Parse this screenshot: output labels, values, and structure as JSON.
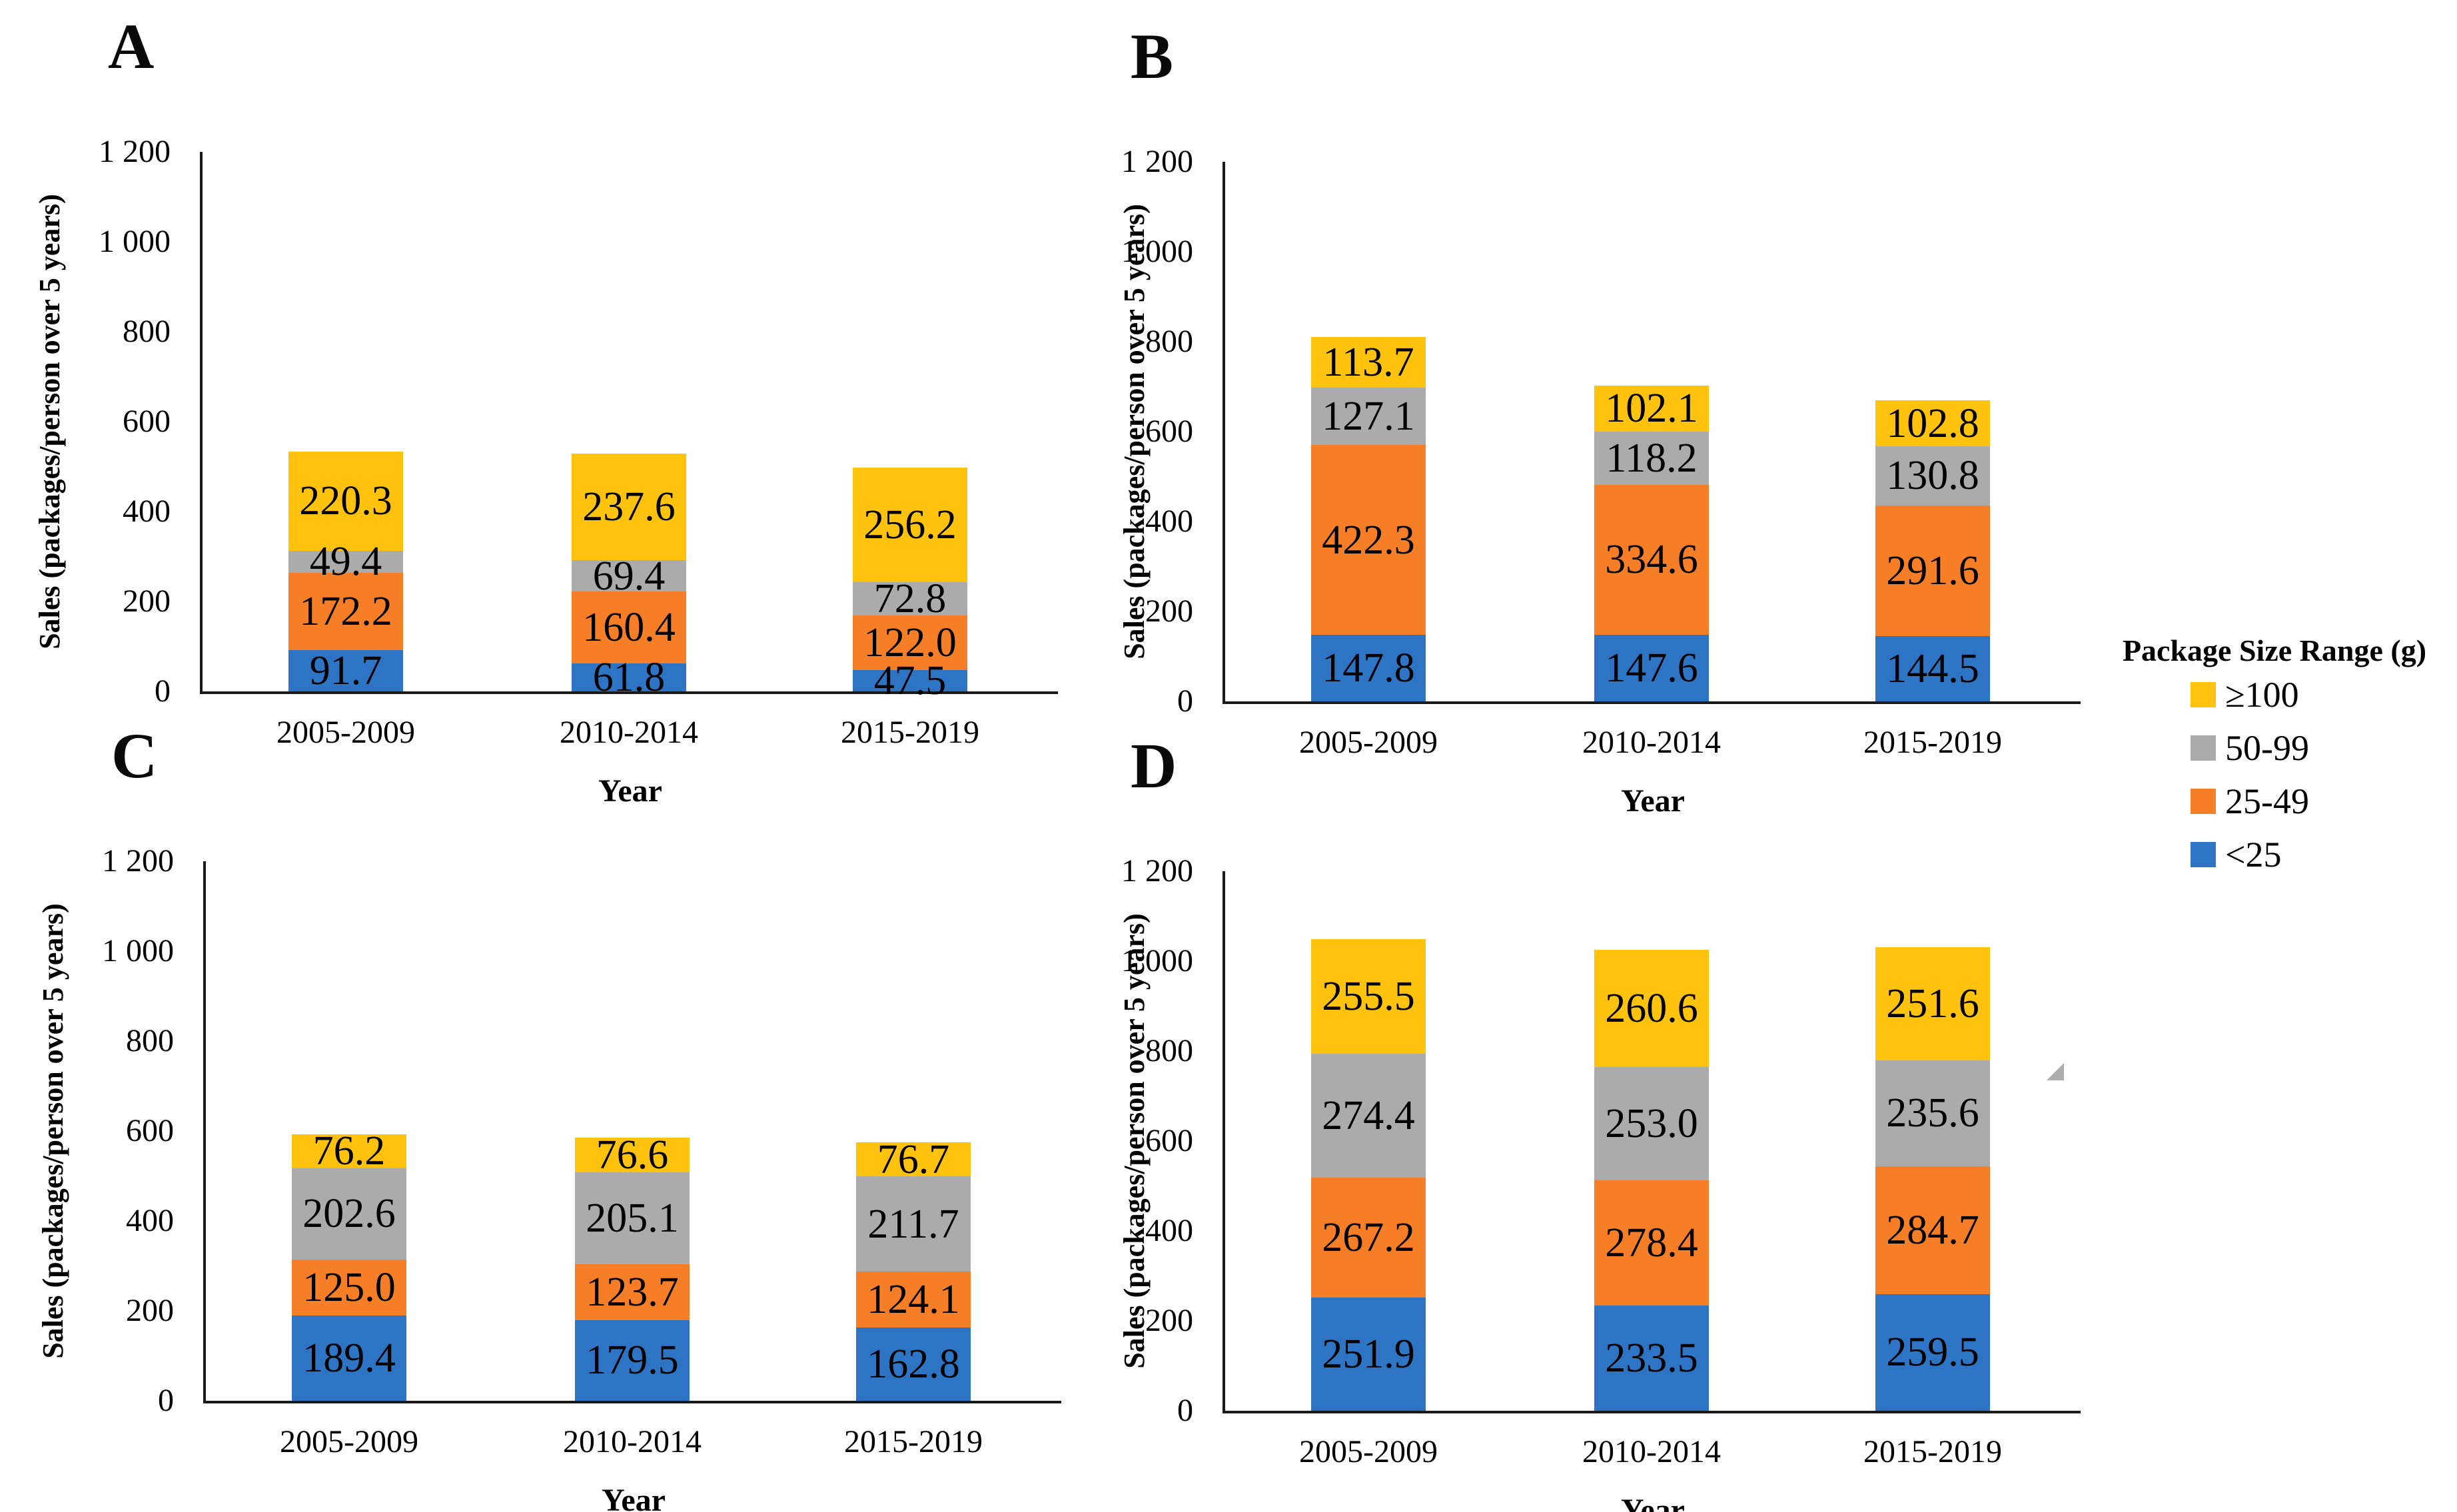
{
  "chart_data": [
    {
      "type": "bar",
      "stacked": true,
      "panel_label": "A",
      "categories": [
        "2005-2009",
        "2010-2014",
        "2015-2019"
      ],
      "xlabel": "Year",
      "ylabel": "Sales (packages/person over 5 years)",
      "ylim": [
        0,
        1200
      ],
      "ytick_labels": [
        "0",
        "200",
        "400",
        "600",
        "800",
        "1 000",
        "1 200"
      ],
      "legend_position": "right-of-figure",
      "grid": false,
      "series": [
        {
          "name": "<25",
          "color_key": "blue",
          "values": [
            91.7,
            61.8,
            47.5
          ],
          "value_labels": [
            "91.7",
            "61.8",
            "47.5"
          ]
        },
        {
          "name": "25-49",
          "color_key": "orange",
          "values": [
            172.2,
            160.4,
            122.0
          ],
          "value_labels": [
            "172.2",
            "160.4",
            "122.0"
          ]
        },
        {
          "name": "50-99",
          "color_key": "gray",
          "values": [
            49.4,
            69.4,
            72.8
          ],
          "value_labels": [
            "49.4",
            "69.4",
            "72.8"
          ]
        },
        {
          "name": "≥100",
          "color_key": "yellow",
          "values": [
            220.3,
            237.6,
            256.2
          ],
          "value_labels": [
            "220.3",
            "237.6",
            "256.2"
          ]
        }
      ]
    },
    {
      "type": "bar",
      "stacked": true,
      "panel_label": "B",
      "categories": [
        "2005-2009",
        "2010-2014",
        "2015-2019"
      ],
      "xlabel": "Year",
      "ylabel": "Sales (packages/person over 5 years)",
      "ylim": [
        0,
        1200
      ],
      "ytick_labels": [
        "0",
        "200",
        "400",
        "600",
        "800",
        "1 000",
        "1 200"
      ],
      "grid": false,
      "series": [
        {
          "name": "<25",
          "color_key": "blue",
          "values": [
            147.8,
            147.6,
            144.5
          ],
          "value_labels": [
            "147.8",
            "147.6",
            "144.5"
          ]
        },
        {
          "name": "25-49",
          "color_key": "orange",
          "values": [
            422.3,
            334.6,
            291.6
          ],
          "value_labels": [
            "422.3",
            "334.6",
            "291.6"
          ]
        },
        {
          "name": "50-99",
          "color_key": "gray",
          "values": [
            127.1,
            118.2,
            130.8
          ],
          "value_labels": [
            "127.1",
            "118.2",
            "130.8"
          ]
        },
        {
          "name": "≥100",
          "color_key": "yellow",
          "values": [
            113.7,
            102.1,
            102.8
          ],
          "value_labels": [
            "113.7",
            "102.1",
            "102.8"
          ]
        }
      ]
    },
    {
      "type": "bar",
      "stacked": true,
      "panel_label": "C",
      "categories": [
        "2005-2009",
        "2010-2014",
        "2015-2019"
      ],
      "xlabel": "Year",
      "ylabel": "Sales (packages/person over 5 years)",
      "ylim": [
        0,
        1200
      ],
      "ytick_labels": [
        "0",
        "200",
        "400",
        "600",
        "800",
        "1 000",
        "1 200"
      ],
      "grid": false,
      "series": [
        {
          "name": "<25",
          "color_key": "blue",
          "values": [
            189.4,
            179.5,
            162.8
          ],
          "value_labels": [
            "189.4",
            "179.5",
            "162.8"
          ]
        },
        {
          "name": "25-49",
          "color_key": "orange",
          "values": [
            125.0,
            123.7,
            124.1
          ],
          "value_labels": [
            "125.0",
            "123.7",
            "124.1"
          ]
        },
        {
          "name": "50-99",
          "color_key": "gray",
          "values": [
            202.6,
            205.1,
            211.7
          ],
          "value_labels": [
            "202.6",
            "205.1",
            "211.7"
          ]
        },
        {
          "name": "≥100",
          "color_key": "yellow",
          "values": [
            76.2,
            76.6,
            76.7
          ],
          "value_labels": [
            "76.2",
            "76.6",
            "76.7"
          ]
        }
      ]
    },
    {
      "type": "bar",
      "stacked": true,
      "panel_label": "D",
      "categories": [
        "2005-2009",
        "2010-2014",
        "2015-2019"
      ],
      "xlabel": "Year",
      "ylabel": "Sales (packages/person over 5 years)",
      "ylim": [
        0,
        1200
      ],
      "ytick_labels": [
        "0",
        "200",
        "400",
        "600",
        "800",
        "1 000",
        "1 200"
      ],
      "grid": false,
      "series": [
        {
          "name": "<25",
          "color_key": "blue",
          "values": [
            251.9,
            233.5,
            259.5
          ],
          "value_labels": [
            "251.9",
            "233.5",
            "259.5"
          ]
        },
        {
          "name": "25-49",
          "color_key": "orange",
          "values": [
            267.2,
            278.4,
            284.7
          ],
          "value_labels": [
            "267.2",
            "278.4",
            "284.7"
          ]
        },
        {
          "name": "50-99",
          "color_key": "gray",
          "values": [
            274.4,
            253.0,
            235.6
          ],
          "value_labels": [
            "274.4",
            "253.0",
            "235.6"
          ]
        },
        {
          "name": "≥100",
          "color_key": "yellow",
          "values": [
            255.5,
            260.6,
            251.6
          ],
          "value_labels": [
            "255.5",
            "260.6",
            "251.6"
          ]
        }
      ]
    }
  ],
  "legend": {
    "title": "Package Size Range (g)",
    "items": [
      {
        "label": "≥100",
        "color_key": "yellow"
      },
      {
        "label": "50-99",
        "color_key": "gray"
      },
      {
        "label": "25-49",
        "color_key": "orange"
      },
      {
        "label": "<25",
        "color_key": "blue"
      }
    ]
  },
  "colors": {
    "blue": "#2e74c4",
    "orange": "#f57e27",
    "gray": "#ababab",
    "yellow": "#ffc20d",
    "axis": "#1a1a1a",
    "triangle": "#acacac"
  }
}
